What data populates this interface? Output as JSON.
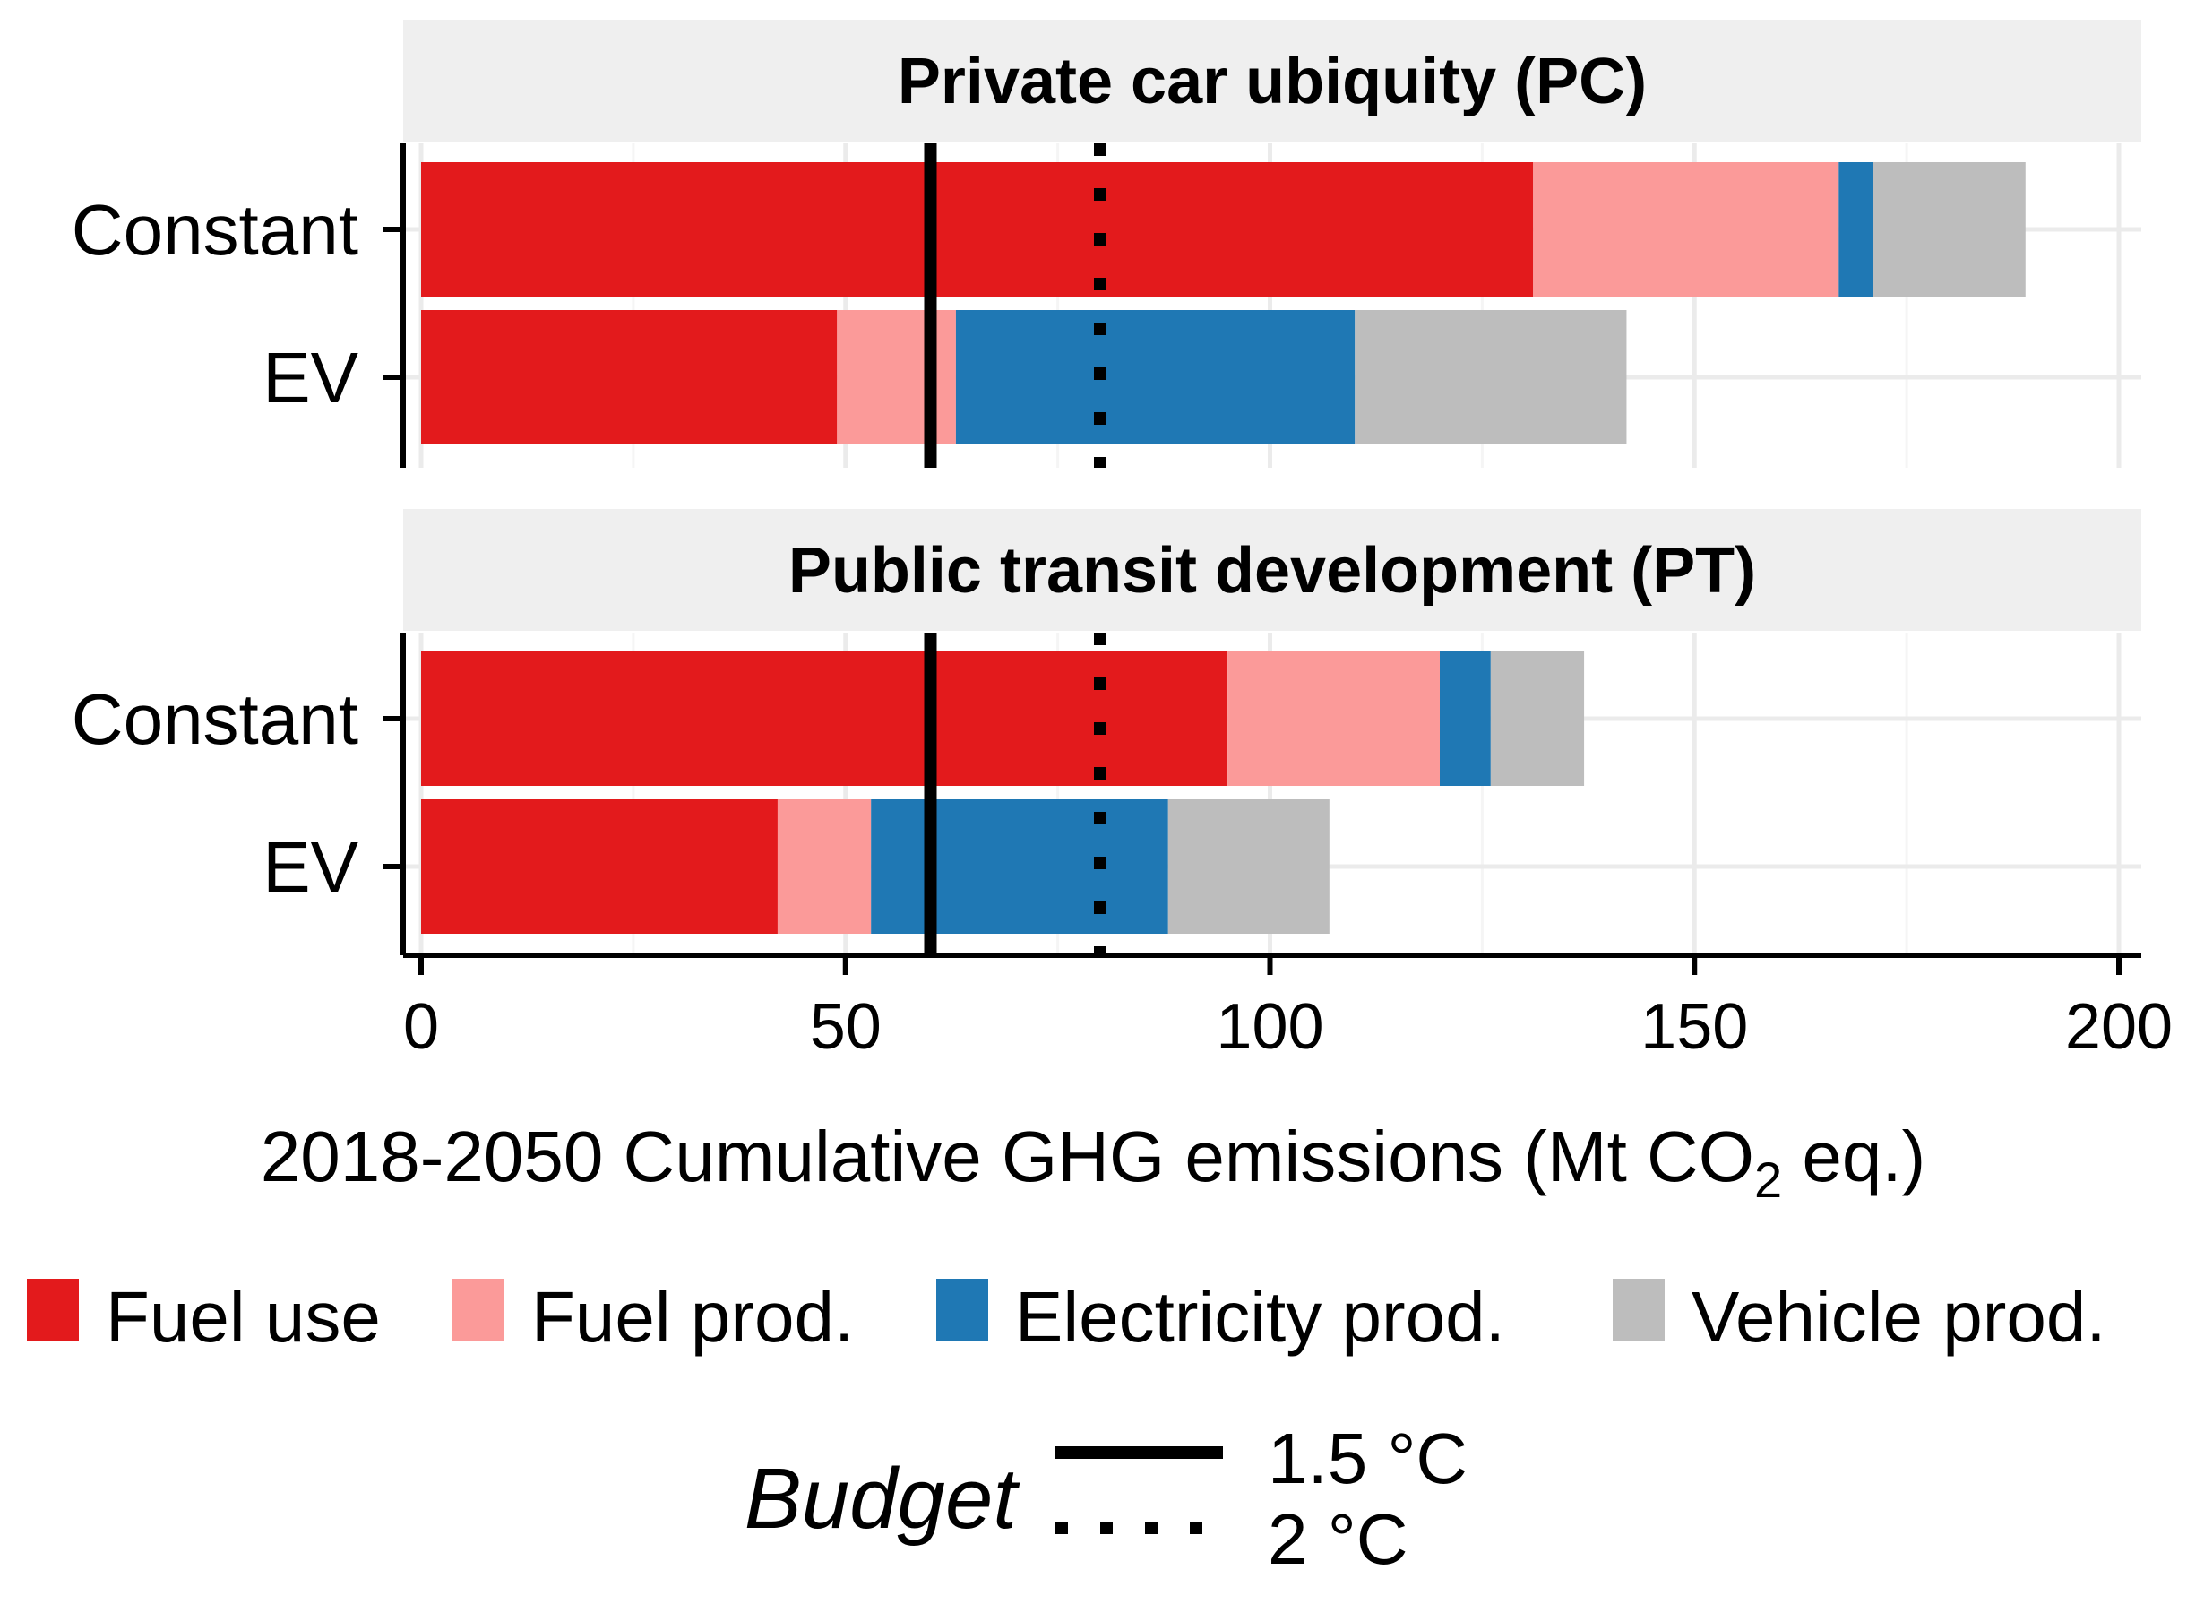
{
  "chart_data": {
    "type": "bar",
    "orientation": "horizontal",
    "stacked": true,
    "xlabel": "2018-2050 Cumulative GHG emissions (Mt CO",
    "xlabel_sub": "2",
    "xlabel_tail": " eq.)",
    "xlim": [
      0,
      200
    ],
    "xticks": [
      0,
      50,
      100,
      150,
      200
    ],
    "grid": true,
    "legend_position": "bottom",
    "categories": [
      "Constant",
      "EV"
    ],
    "series_colors": {
      "fuel_use": "#E31A1C",
      "fuel_prod": "#FB9A99",
      "electricity_prod": "#1F78B4",
      "vehicle_prod": "#BDBDBD"
    },
    "legend": [
      {
        "key": "fuel_use",
        "label": "Fuel use"
      },
      {
        "key": "fuel_prod",
        "label": "Fuel prod."
      },
      {
        "key": "electricity_prod",
        "label": "Electricity prod."
      },
      {
        "key": "vehicle_prod",
        "label": "Vehicle prod."
      }
    ],
    "panels": [
      {
        "title": "Private car ubiquity (PC)",
        "bars": [
          {
            "category": "Constant",
            "fuel_use": 131,
            "fuel_prod": 36,
            "electricity_prod": 4,
            "vehicle_prod": 18
          },
          {
            "category": "EV",
            "fuel_use": 49,
            "fuel_prod": 14,
            "electricity_prod": 47,
            "vehicle_prod": 32
          }
        ]
      },
      {
        "title": "Public transit development (PT)",
        "bars": [
          {
            "category": "Constant",
            "fuel_use": 95,
            "fuel_prod": 25,
            "electricity_prod": 6,
            "vehicle_prod": 11
          },
          {
            "category": "EV",
            "fuel_use": 42,
            "fuel_prod": 11,
            "electricity_prod": 35,
            "vehicle_prod": 19
          }
        ]
      }
    ],
    "budget": {
      "title": "Budget",
      "lines": [
        {
          "label": "1.5 °C",
          "value": 60,
          "style": "solid"
        },
        {
          "label": "2 °C",
          "value": 80,
          "style": "dotted"
        }
      ]
    }
  }
}
